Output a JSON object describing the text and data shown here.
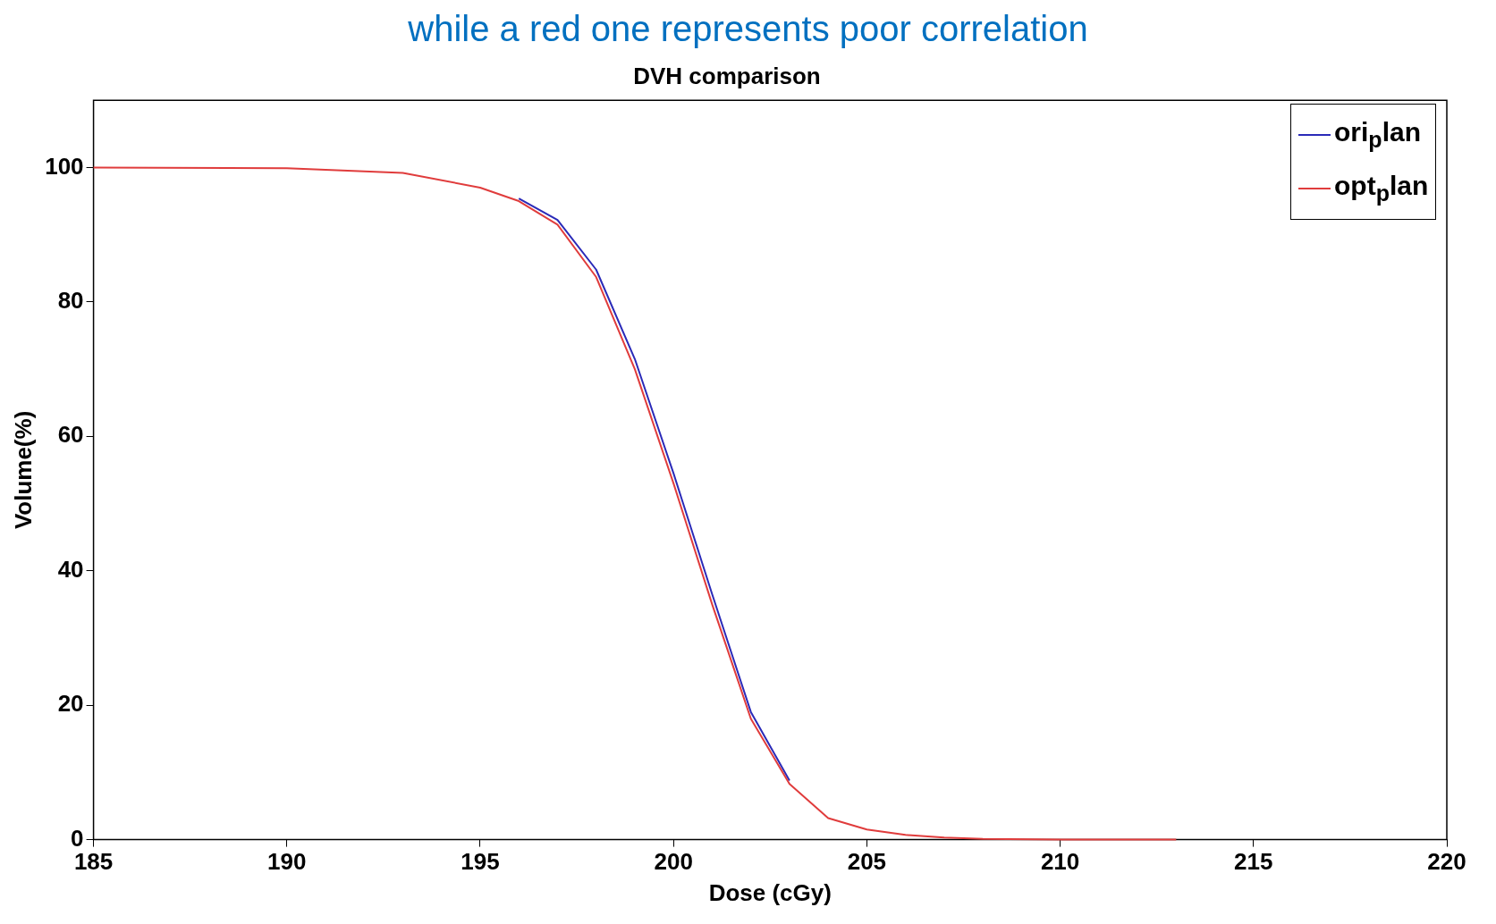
{
  "chart_data": {
    "type": "line",
    "title": "DVH comparison",
    "xlabel": "Dose (cGy)",
    "ylabel": "Volume(%)",
    "annotations": [
      "while a red one represents poor correlation"
    ],
    "x": [
      185,
      190,
      193,
      195,
      196,
      197,
      198,
      199,
      200,
      201,
      202,
      203,
      204,
      205,
      206,
      207,
      208,
      210,
      213
    ],
    "series": [
      {
        "name": "ori$_{p}$lan",
        "color": "#2a2ab8",
        "values": [
          null,
          null,
          null,
          null,
          95.4,
          92.2,
          84.8,
          71.5,
          54.5,
          36.5,
          19,
          8.8,
          null,
          null,
          null,
          null,
          null,
          null,
          null
        ]
      },
      {
        "name": "opt$_{p}$lan",
        "color": "#e03c3c",
        "values": [
          100,
          99.9,
          99.2,
          97,
          95,
          91.5,
          83.7,
          70,
          53,
          35,
          18,
          8.3,
          3.2,
          1.5,
          0.7,
          0.3,
          0.1,
          0,
          0
        ]
      }
    ],
    "xlim": [
      185,
      220
    ],
    "xticks": [
      185,
      190,
      195,
      200,
      205,
      210,
      215,
      220
    ],
    "ylim": [
      0,
      110
    ],
    "yticks": [
      0,
      20,
      40,
      60,
      80,
      100
    ],
    "legend": "top right",
    "grid": false,
    "marker": "none",
    "line_style": "solid"
  }
}
